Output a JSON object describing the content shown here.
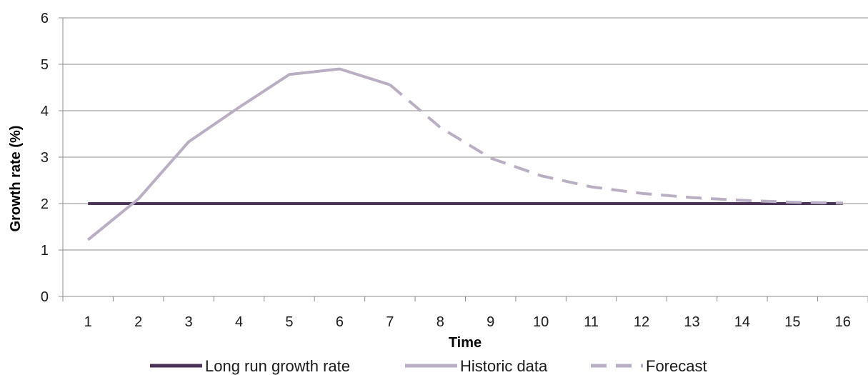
{
  "chart_data": {
    "type": "line",
    "title": "",
    "xlabel": "Time",
    "ylabel": "Growth rate (%)",
    "categories": [
      1,
      2,
      3,
      4,
      5,
      6,
      7,
      8,
      9,
      10,
      11,
      12,
      13,
      14,
      15,
      16
    ],
    "ylim": [
      0,
      6
    ],
    "yticks": [
      0,
      1,
      2,
      3,
      4,
      5,
      6
    ],
    "grid": "horizontal",
    "legend_position": "bottom",
    "series": [
      {
        "name": "Long run growth rate",
        "color": "#4b3457",
        "style": "solid",
        "x": [
          1,
          16
        ],
        "values": [
          2,
          2
        ]
      },
      {
        "name": "Historic data",
        "color": "#b9aec4",
        "style": "solid",
        "x": [
          1,
          2,
          3,
          4,
          5,
          6,
          7
        ],
        "values": [
          1.22,
          2.1,
          3.33,
          4.07,
          4.78,
          4.9,
          4.56
        ]
      },
      {
        "name": "Forecast",
        "color": "#b9aec4",
        "style": "dashed",
        "x": [
          7,
          8,
          9,
          10,
          11,
          12,
          13,
          14,
          15,
          16
        ],
        "values": [
          4.56,
          3.64,
          2.98,
          2.6,
          2.36,
          2.22,
          2.13,
          2.07,
          2.03,
          2.01
        ]
      }
    ]
  }
}
